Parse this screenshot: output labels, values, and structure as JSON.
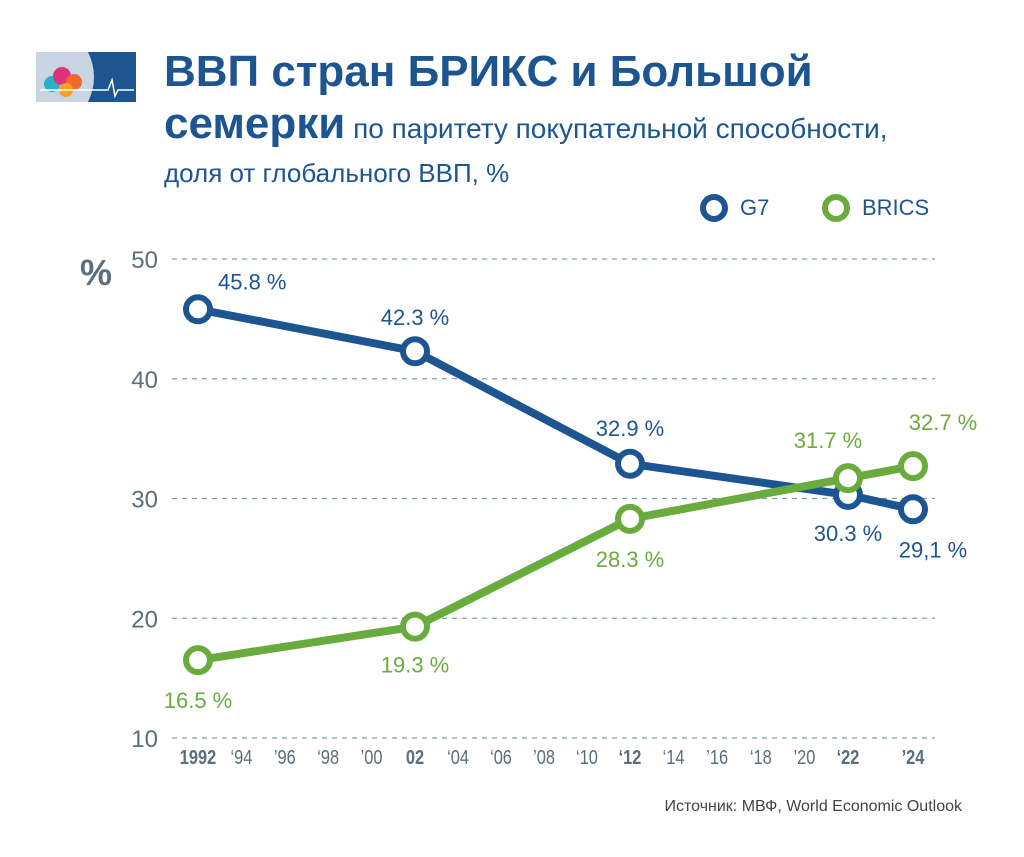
{
  "header": {
    "title_line1": "ВВП стран БРИКС и Большой",
    "title_line2_bold": "семерки",
    "title_line2_rest": " по паритету покупательной способности,",
    "subtitle": "доля от глобального ВВП, %"
  },
  "source": "Источник: МВФ, World Economic Outlook",
  "colors": {
    "g7": "#1d5590",
    "brics": "#6aab3e",
    "grid": "#8a9aa6",
    "axis_text": "#5a6e7c"
  },
  "logo": "logo-icon",
  "chart_data": {
    "type": "line",
    "ylabel": "%",
    "ylim": [
      10,
      50
    ],
    "yticks": [
      10,
      20,
      30,
      40,
      50
    ],
    "grid": true,
    "legend_placement": "top-right",
    "xticks": [
      {
        "year": 1992,
        "label": "1992",
        "bold": true
      },
      {
        "year": 1994,
        "label": "‘94",
        "bold": false
      },
      {
        "year": 1996,
        "label": "’96",
        "bold": false
      },
      {
        "year": 1998,
        "label": "‘98",
        "bold": false
      },
      {
        "year": 2000,
        "label": "’00",
        "bold": false
      },
      {
        "year": 2002,
        "label": "02",
        "bold": true
      },
      {
        "year": 2004,
        "label": "‘04",
        "bold": false
      },
      {
        "year": 2006,
        "label": "‘06",
        "bold": false
      },
      {
        "year": 2008,
        "label": "’08",
        "bold": false
      },
      {
        "year": 2010,
        "label": "‘10",
        "bold": false
      },
      {
        "year": 2012,
        "label": "‘12",
        "bold": true
      },
      {
        "year": 2014,
        "label": "‘14",
        "bold": false
      },
      {
        "year": 2016,
        "label": "’16",
        "bold": false
      },
      {
        "year": 2018,
        "label": "‘18",
        "bold": false
      },
      {
        "year": 2020,
        "label": "’20",
        "bold": false
      },
      {
        "year": 2022,
        "label": "‘22",
        "bold": true
      },
      {
        "year": 2024,
        "label": "’24",
        "bold": true
      }
    ],
    "series": [
      {
        "name": "G7",
        "color": "#1d5590",
        "x": [
          1992,
          2002,
          2012,
          2022,
          2024
        ],
        "y": [
          45.8,
          42.3,
          32.9,
          30.3,
          29.1
        ],
        "labels": [
          "45.8 %",
          "42.3 %",
          "32.9 %",
          "30.3 %",
          "29,1 %"
        ]
      },
      {
        "name": "BRICS",
        "color": "#6aab3e",
        "x": [
          1992,
          2002,
          2012,
          2022,
          2024
        ],
        "y": [
          16.5,
          19.3,
          28.3,
          31.7,
          32.7
        ],
        "labels": [
          "16.5 %",
          "19.3 %",
          "28.3 %",
          "31.7 %",
          "32.7 %"
        ]
      }
    ]
  }
}
